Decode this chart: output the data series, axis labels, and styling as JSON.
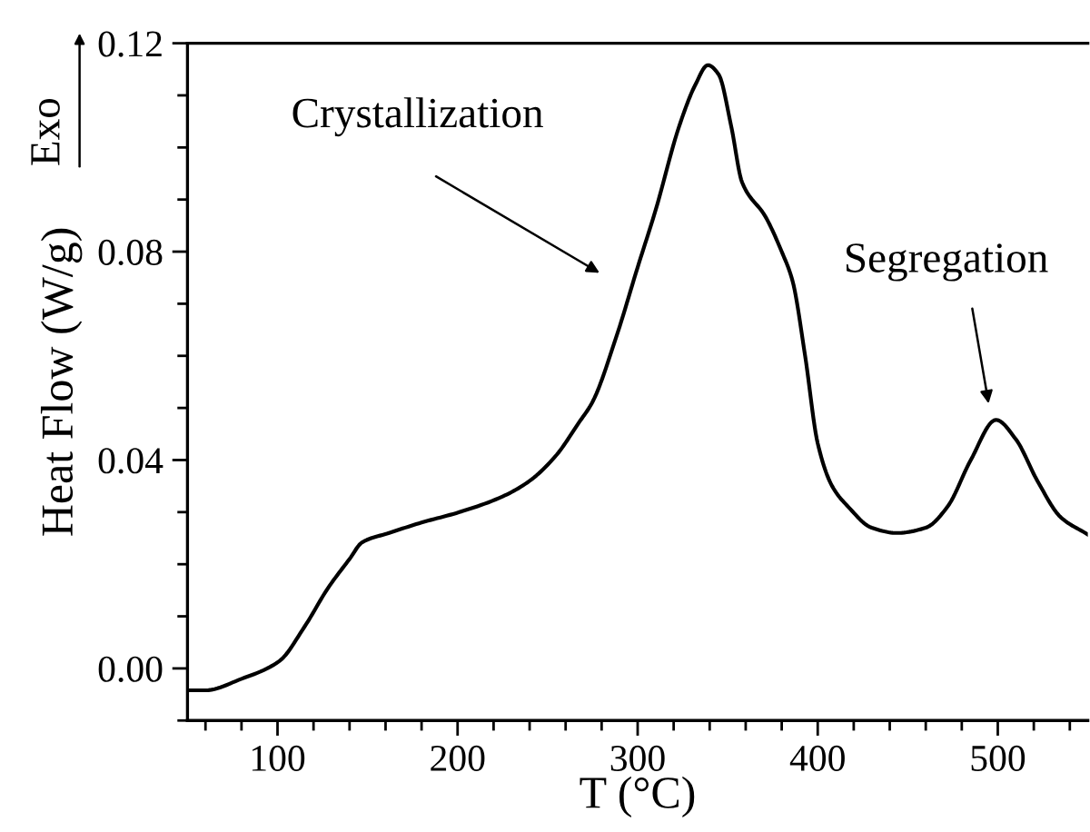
{
  "chart_data": {
    "type": "line",
    "xlabel": "T (°C)",
    "ylabel": "Heat Flow (W/g)",
    "x": [
      50,
      60,
      80,
      101,
      115,
      128,
      140,
      147,
      162,
      180,
      201,
      225,
      240,
      255,
      267,
      275,
      288,
      300,
      310,
      323,
      332,
      339,
      345,
      352,
      358,
      371,
      380,
      386,
      393,
      400,
      408,
      417,
      430,
      444,
      460,
      472,
      485,
      499,
      510,
      522,
      535,
      550
    ],
    "series": [
      {
        "color": "#000000",
        "values": [
          -0.0042,
          -0.0042,
          -0.002,
          0.0014,
          0.008,
          0.0154,
          0.021,
          0.0242,
          0.026,
          0.028,
          0.03,
          0.033,
          0.036,
          0.041,
          0.047,
          0.0512,
          0.0635,
          0.077,
          0.088,
          0.104,
          0.112,
          0.1158,
          0.114,
          0.104,
          0.0933,
          0.0867,
          0.08,
          0.0744,
          0.06,
          0.0432,
          0.035,
          0.031,
          0.027,
          0.026,
          0.027,
          0.031,
          0.04,
          0.0477,
          0.044,
          0.036,
          0.029,
          0.0257
        ]
      }
    ],
    "xlim": [
      50,
      550
    ],
    "xticks": [
      100,
      200,
      300,
      400,
      500
    ],
    "ylim": [
      -0.01,
      0.12
    ],
    "yticks": [
      {
        "value": 0,
        "label": "0.00"
      },
      {
        "value": 0.04,
        "label": "0.04"
      },
      {
        "value": 0.08,
        "label": "0.08"
      },
      {
        "value": 0.12,
        "label": "0.12"
      }
    ],
    "grid": false,
    "legend": false,
    "marker": "none",
    "line_style": "solid",
    "annotations": [
      "Crystallization",
      "Segregation",
      "Exo"
    ]
  }
}
